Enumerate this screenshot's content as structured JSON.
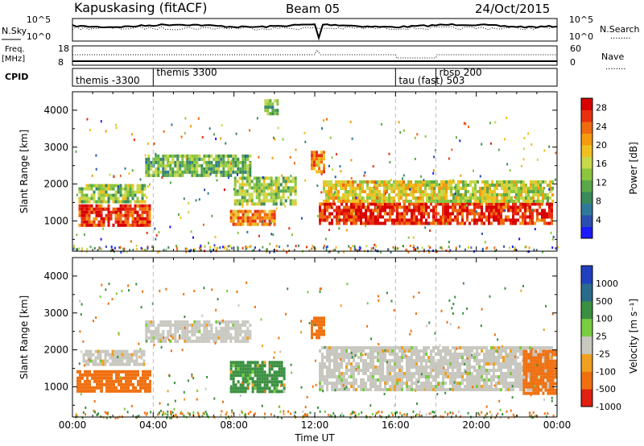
{
  "header": {
    "station": "Kapuskasing (fitACF)",
    "beam": "Beam 05",
    "date": "24/Oct/2015"
  },
  "top_panels": {
    "nsky_label": "N.Sky",
    "nsearch_label": "N.Search",
    "freq_label_1": "Freq.",
    "freq_label_2": "[MHz]",
    "nave_label": "Nave",
    "cpid_label": "CPID",
    "dotted_key": "........",
    "noise_axis_left": [
      "10^5",
      "10^0"
    ],
    "noise_axis_right": [
      "10^5",
      "10^0"
    ],
    "freq_axis_left": [
      "18",
      "8"
    ],
    "nave_axis_right": [
      "60",
      "0"
    ]
  },
  "cpid_segments": [
    {
      "label": "themis -3300",
      "start_hour": 0.0
    },
    {
      "label": "themis 3300",
      "start_hour": 4.0
    },
    {
      "label": "tau (fast) 503",
      "start_hour": 16.0
    },
    {
      "label": "rbsp 200",
      "start_hour": 18.0
    }
  ],
  "chart_data": [
    {
      "type": "heatmap",
      "name": "power-panel",
      "ylabel": "Slant Range [km]",
      "xlabel": "Time UT",
      "x_ticks": [
        "00:00",
        "04:00",
        "08:00",
        "12:00",
        "16:00",
        "20:00",
        "00:00"
      ],
      "xlim_hours": [
        0,
        24
      ],
      "y_ticks": [
        1000,
        2000,
        3000,
        4000
      ],
      "ylim_km": [
        180,
        4500
      ],
      "colorbar": {
        "label": "Power [dB]",
        "ticks": [
          "4",
          "8",
          "12",
          "16",
          "20",
          "24",
          "28"
        ],
        "range": [
          0,
          30
        ],
        "colors": [
          "#1b1bff",
          "#2b4fb0",
          "#2f7a9a",
          "#3a8a5a",
          "#5aa84a",
          "#8cc63f",
          "#c8d84a",
          "#f0c020",
          "#f59a10",
          "#f06a10",
          "#e83010",
          "#d80000"
        ]
      },
      "regions": [
        {
          "t0": 0.3,
          "t1": 3.8,
          "r0": 900,
          "r1": 1450,
          "value": 26
        },
        {
          "t0": 0.3,
          "t1": 3.6,
          "r0": 1500,
          "r1": 2000,
          "value": 14
        },
        {
          "t0": 3.6,
          "t1": 8.8,
          "r0": 2200,
          "r1": 2800,
          "value": 12
        },
        {
          "t0": 7.8,
          "t1": 10.0,
          "r0": 900,
          "r1": 1300,
          "value": 22
        },
        {
          "t0": 8.0,
          "t1": 11.0,
          "r0": 1500,
          "r1": 2200,
          "value": 14
        },
        {
          "t0": 12.2,
          "t1": 23.8,
          "r0": 900,
          "r1": 1500,
          "value": 27
        },
        {
          "t0": 12.4,
          "t1": 17.5,
          "r0": 1500,
          "r1": 2100,
          "value": 18
        },
        {
          "t0": 17.5,
          "t1": 23.8,
          "r0": 1500,
          "r1": 2100,
          "value": 16
        },
        {
          "t0": 9.5,
          "t1": 10.2,
          "r0": 3900,
          "r1": 4300,
          "value": 12
        },
        {
          "t0": 11.8,
          "t1": 12.4,
          "r0": 2300,
          "r1": 2900,
          "value": 22
        }
      ]
    },
    {
      "type": "heatmap",
      "name": "velocity-panel",
      "ylabel": "Slant Range [km]",
      "xlabel": "Time UT",
      "x_ticks": [
        "00:00",
        "04:00",
        "08:00",
        "12:00",
        "16:00",
        "20:00",
        "00:00"
      ],
      "xlim_hours": [
        0,
        24
      ],
      "y_ticks": [
        1000,
        2000,
        3000,
        4000
      ],
      "ylim_km": [
        180,
        4500
      ],
      "colorbar": {
        "label": "Velocity [m s⁻¹]",
        "ticks": [
          "1000",
          "500",
          "100",
          "25",
          "-25",
          "-100",
          "-500",
          "-1000"
        ],
        "colors": [
          "#2040c0",
          "#2a6a8a",
          "#3a9040",
          "#7acc40",
          "#c8c8c0",
          "#f0a020",
          "#f07010",
          "#e02010"
        ]
      },
      "regions": [
        {
          "t0": 0.2,
          "t1": 3.8,
          "r0": 900,
          "r1": 1450,
          "value": -300
        },
        {
          "t0": 3.6,
          "t1": 8.8,
          "r0": 2200,
          "r1": 2800,
          "value": 0
        },
        {
          "t0": 0.5,
          "t1": 3.6,
          "r0": 1600,
          "r1": 2000,
          "value": 0
        },
        {
          "t0": 7.8,
          "t1": 10.5,
          "r0": 900,
          "r1": 1700,
          "value": 150
        },
        {
          "t0": 12.2,
          "t1": 23.8,
          "r0": 900,
          "r1": 2100,
          "value": 0
        },
        {
          "t0": 22.3,
          "t1": 23.9,
          "r0": 800,
          "r1": 2000,
          "value": -300
        },
        {
          "t0": 11.8,
          "t1": 12.4,
          "r0": 2300,
          "r1": 2900,
          "value": -300
        }
      ]
    }
  ]
}
